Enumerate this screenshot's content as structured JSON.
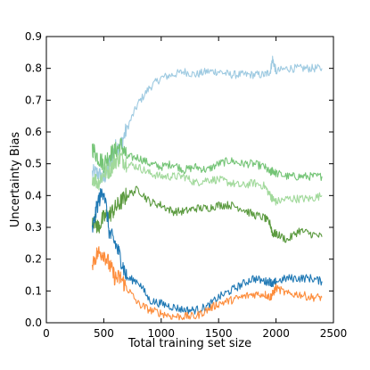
{
  "chart_data": {
    "type": "line",
    "title": "",
    "xlabel": "Total training set size",
    "ylabel": "Uncertainty Bias",
    "xlim": [
      0,
      2500
    ],
    "ylim": [
      0.0,
      0.9
    ],
    "xticks": [
      "0",
      "500",
      "1000",
      "1500",
      "2000",
      "2500"
    ],
    "yticks": [
      "0.0",
      "0.1",
      "0.2",
      "0.3",
      "0.4",
      "0.5",
      "0.6",
      "0.7",
      "0.8",
      "0.9"
    ],
    "grid": false,
    "legend": false,
    "x": [
      400,
      450,
      500,
      550,
      600,
      650,
      700,
      800,
      900,
      1000,
      1100,
      1200,
      1300,
      1400,
      1500,
      1600,
      1700,
      1800,
      1900,
      1950,
      1970,
      2000,
      2100,
      2200,
      2300,
      2400
    ],
    "series": [
      {
        "color": "#9ecae1",
        "values": [
          0.47,
          0.47,
          0.45,
          0.5,
          0.55,
          0.56,
          0.61,
          0.69,
          0.74,
          0.77,
          0.78,
          0.79,
          0.78,
          0.79,
          0.79,
          0.78,
          0.78,
          0.78,
          0.78,
          0.79,
          0.83,
          0.79,
          0.8,
          0.8,
          0.8,
          0.8
        ]
      },
      {
        "color": "#74c476",
        "values": [
          0.55,
          0.52,
          0.5,
          0.53,
          0.54,
          0.56,
          0.52,
          0.52,
          0.5,
          0.49,
          0.5,
          0.48,
          0.49,
          0.48,
          0.5,
          0.51,
          0.5,
          0.5,
          0.49,
          0.47,
          0.48,
          0.47,
          0.46,
          0.46,
          0.46,
          0.46
        ]
      },
      {
        "color": "#a1d99b",
        "values": [
          0.46,
          0.44,
          0.47,
          0.48,
          0.51,
          0.52,
          0.5,
          0.49,
          0.47,
          0.46,
          0.46,
          0.46,
          0.44,
          0.45,
          0.45,
          0.44,
          0.43,
          0.44,
          0.43,
          0.4,
          0.39,
          0.38,
          0.39,
          0.39,
          0.39,
          0.4
        ]
      },
      {
        "color": "#5b9a3f",
        "values": [
          0.33,
          0.3,
          0.33,
          0.34,
          0.36,
          0.38,
          0.4,
          0.42,
          0.38,
          0.37,
          0.35,
          0.35,
          0.36,
          0.36,
          0.37,
          0.37,
          0.36,
          0.34,
          0.33,
          0.31,
          0.28,
          0.28,
          0.26,
          0.29,
          0.28,
          0.27
        ]
      },
      {
        "color": "#1f78b4",
        "values": [
          0.29,
          0.38,
          0.42,
          0.28,
          0.25,
          0.2,
          0.14,
          0.13,
          0.07,
          0.06,
          0.05,
          0.04,
          0.04,
          0.05,
          0.08,
          0.1,
          0.12,
          0.14,
          0.13,
          0.13,
          0.12,
          0.13,
          0.14,
          0.14,
          0.14,
          0.13
        ]
      },
      {
        "color": "#fd8d3c",
        "values": [
          0.19,
          0.22,
          0.22,
          0.18,
          0.14,
          0.14,
          0.11,
          0.06,
          0.04,
          0.03,
          0.02,
          0.02,
          0.02,
          0.04,
          0.06,
          0.07,
          0.08,
          0.09,
          0.09,
          0.08,
          0.09,
          0.11,
          0.09,
          0.09,
          0.08,
          0.08
        ]
      }
    ]
  }
}
